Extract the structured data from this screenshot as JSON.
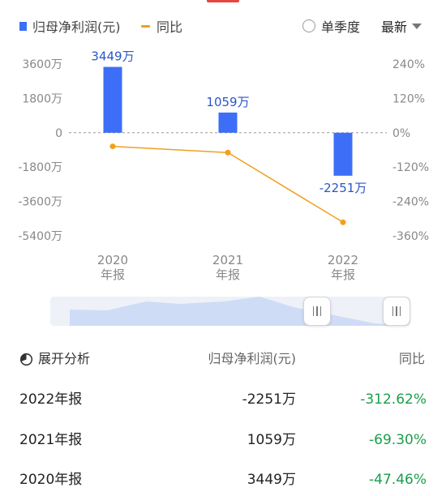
{
  "legend": {
    "profit_label": "归母净利润(元)",
    "yoy_label": "同比",
    "quarter_toggle_label": "单季度",
    "latest_label": "最新"
  },
  "colors": {
    "bar": "#3d6ef7",
    "line": "#f0a020",
    "negative_change": "#1a9e4b",
    "bar_label": "#2b56c9"
  },
  "chart_data": {
    "type": "bar",
    "categories": [
      "2020\n年报",
      "2021\n年报",
      "2022\n年报"
    ],
    "series": [
      {
        "name": "归母净利润(元)",
        "type": "bar",
        "axis": "left",
        "values": [
          3449,
          1059,
          -2251
        ],
        "labels": [
          "3449万",
          "1059万",
          "-2251万"
        ]
      },
      {
        "name": "同比",
        "type": "line",
        "axis": "right",
        "values": [
          -47.46,
          -69.3,
          -312.62
        ]
      }
    ],
    "left_axis": {
      "ticks": [
        "3600万",
        "1800万",
        "0",
        "-1800万",
        "-3600万",
        "-5400万"
      ],
      "values": [
        3600,
        1800,
        0,
        -1800,
        -3600,
        -5400
      ],
      "ylim": [
        -5400,
        3600
      ]
    },
    "right_axis": {
      "ticks": [
        "240%",
        "120%",
        "0%",
        "-120%",
        "-240%",
        "-360%"
      ],
      "values": [
        240,
        120,
        0,
        -120,
        -240,
        -360
      ],
      "ylim": [
        -360,
        240
      ]
    },
    "zero_line": "dashed",
    "grid": false
  },
  "table": {
    "expand_label": "展开分析",
    "profit_header": "归母净利润(元)",
    "yoy_header": "同比",
    "rows": [
      {
        "period": "2022年报",
        "profit": "-2251万",
        "yoy": "-312.62%"
      },
      {
        "period": "2021年报",
        "profit": "1059万",
        "yoy": "-69.30%"
      },
      {
        "period": "2020年报",
        "profit": "3449万",
        "yoy": "-47.46%"
      }
    ]
  }
}
